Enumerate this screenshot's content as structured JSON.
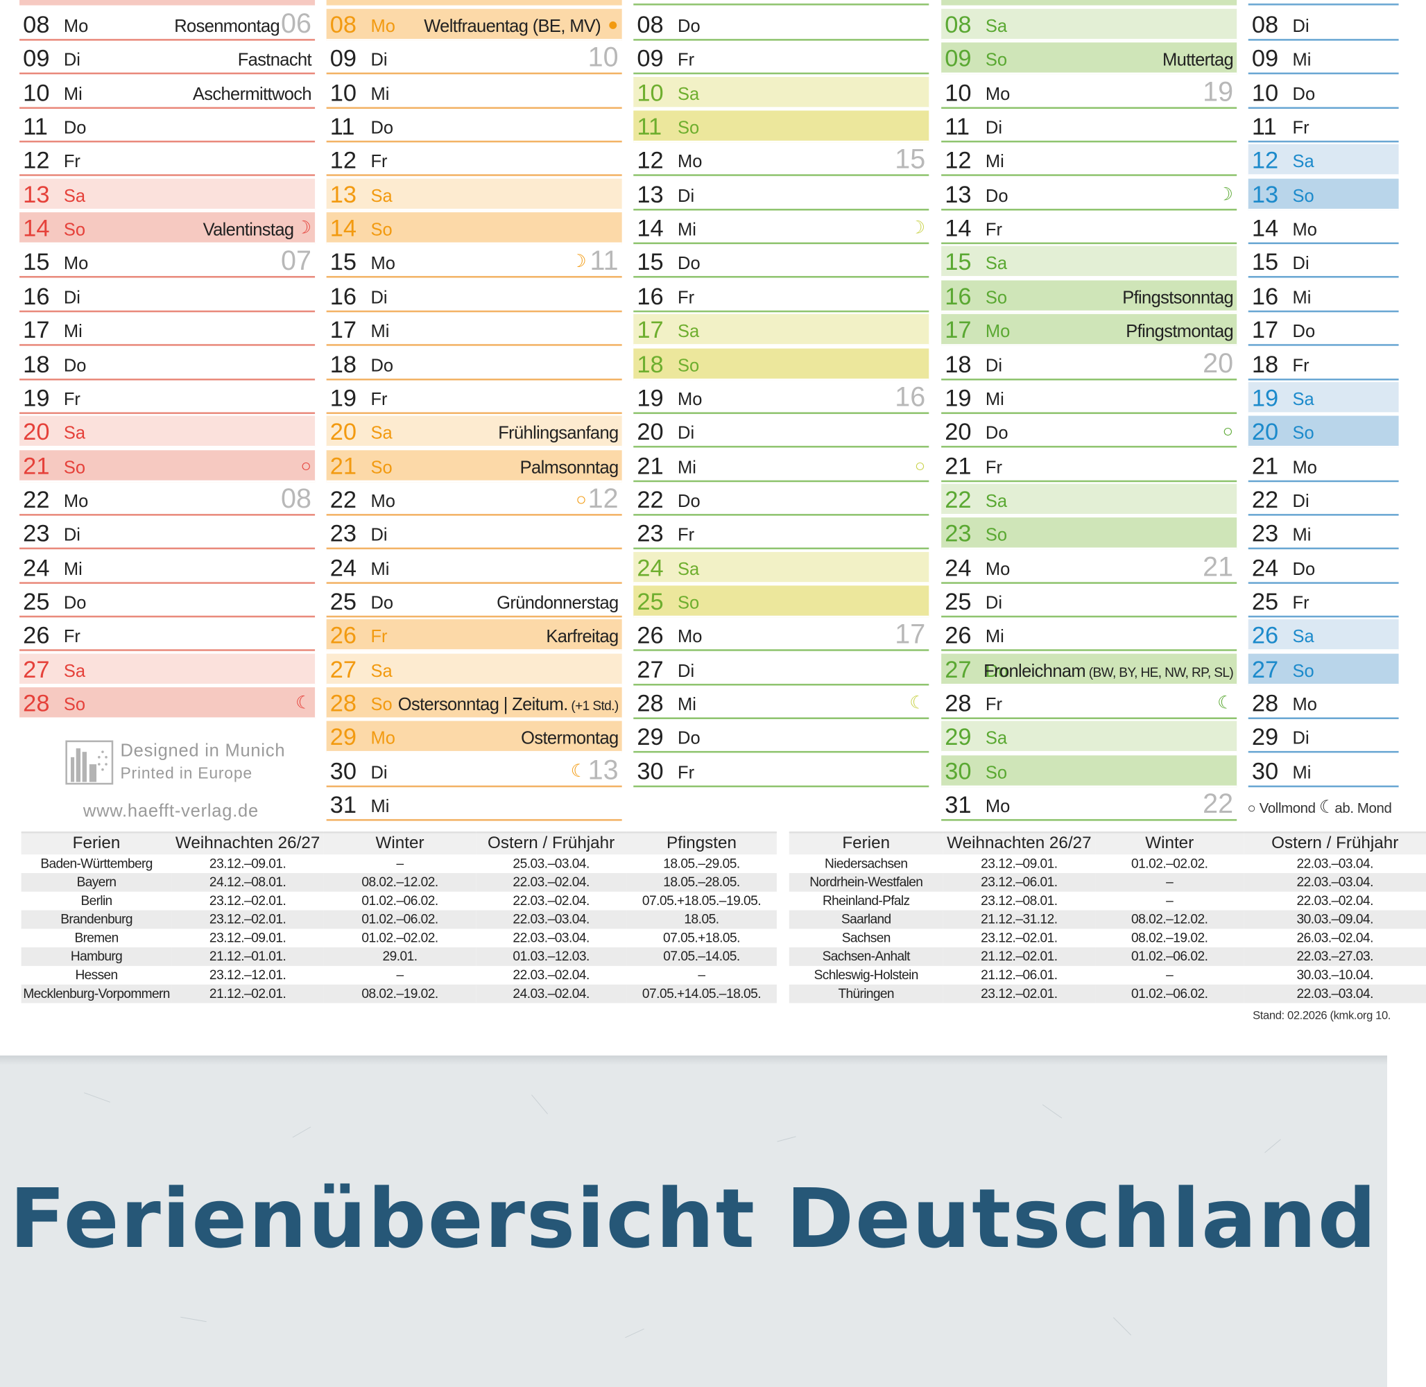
{
  "title": "Ferienübersicht Deutschland",
  "colors": {
    "title": "#265777",
    "felt_background": "#e4e8ea",
    "weeknumber": "#b8b8b8",
    "text": "#222222"
  },
  "credits": {
    "designed": "Designed in Munich",
    "printed": "Printed in Europe",
    "url": "www.haefft-verlag.de"
  },
  "legend": {
    "full_moon": "Vollmond",
    "next": "ab. Mond"
  },
  "months": [
    {
      "key": "feb",
      "theme": {
        "line": "#e98a7c",
        "accent": "#e5413a",
        "sat": "#fbe1dc",
        "sun": "#f6c9c1",
        "hol": "#fbe1dc",
        "moon": "#e5413a"
      },
      "days": [
        {
          "d": "08",
          "w": "Mo",
          "hol": "Rosenmontag",
          "wk": "06"
        },
        {
          "d": "09",
          "w": "Di",
          "hol": "Fastnacht"
        },
        {
          "d": "10",
          "w": "Mi",
          "hol": "Aschermittwoch"
        },
        {
          "d": "11",
          "w": "Do"
        },
        {
          "d": "12",
          "w": "Fr"
        },
        {
          "d": "13",
          "w": "Sa",
          "type": "sat"
        },
        {
          "d": "14",
          "w": "So",
          "type": "sun",
          "hol": "Valentinstag",
          "moon": "☽"
        },
        {
          "d": "15",
          "w": "Mo",
          "wk": "07"
        },
        {
          "d": "16",
          "w": "Di"
        },
        {
          "d": "17",
          "w": "Mi"
        },
        {
          "d": "18",
          "w": "Do"
        },
        {
          "d": "19",
          "w": "Fr"
        },
        {
          "d": "20",
          "w": "Sa",
          "type": "sat"
        },
        {
          "d": "21",
          "w": "So",
          "type": "sun",
          "moon": "○"
        },
        {
          "d": "22",
          "w": "Mo",
          "wk": "08"
        },
        {
          "d": "23",
          "w": "Di"
        },
        {
          "d": "24",
          "w": "Mi"
        },
        {
          "d": "25",
          "w": "Do"
        },
        {
          "d": "26",
          "w": "Fr"
        },
        {
          "d": "27",
          "w": "Sa",
          "type": "sat"
        },
        {
          "d": "28",
          "w": "So",
          "type": "sun",
          "moon": "☾"
        }
      ]
    },
    {
      "key": "mar",
      "theme": {
        "line": "#f3b366",
        "accent": "#f29a10",
        "sat": "#fdebd0",
        "sun": "#fcd9a8",
        "hol": "#fcd9a8",
        "moon": "#f29a10"
      },
      "days": [
        {
          "d": "08",
          "w": "Mo",
          "type": "hol",
          "hol": "Weltfrauentag (BE, MV)",
          "moon": "●"
        },
        {
          "d": "09",
          "w": "Di",
          "wk": "10"
        },
        {
          "d": "10",
          "w": "Mi"
        },
        {
          "d": "11",
          "w": "Do"
        },
        {
          "d": "12",
          "w": "Fr"
        },
        {
          "d": "13",
          "w": "Sa",
          "type": "sat"
        },
        {
          "d": "14",
          "w": "So",
          "type": "sun"
        },
        {
          "d": "15",
          "w": "Mo",
          "moon": "☽",
          "wk": "11"
        },
        {
          "d": "16",
          "w": "Di"
        },
        {
          "d": "17",
          "w": "Mi"
        },
        {
          "d": "18",
          "w": "Do"
        },
        {
          "d": "19",
          "w": "Fr"
        },
        {
          "d": "20",
          "w": "Sa",
          "type": "sat",
          "hol": "Frühlingsanfang"
        },
        {
          "d": "21",
          "w": "So",
          "type": "sun",
          "hol": "Palmsonntag"
        },
        {
          "d": "22",
          "w": "Mo",
          "moon": "○",
          "wk": "12"
        },
        {
          "d": "23",
          "w": "Di"
        },
        {
          "d": "24",
          "w": "Mi"
        },
        {
          "d": "25",
          "w": "Do",
          "hol": "Gründonnerstag"
        },
        {
          "d": "26",
          "w": "Fr",
          "type": "hol",
          "hol": "Karfreitag"
        },
        {
          "d": "27",
          "w": "Sa",
          "type": "sat"
        },
        {
          "d": "28",
          "w": "So",
          "type": "sun",
          "hol": "Ostersonntag | Zeitum.",
          "hol_small": "(+1 Std.)"
        },
        {
          "d": "29",
          "w": "Mo",
          "type": "hol",
          "hol": "Ostermontag"
        },
        {
          "d": "30",
          "w": "Di",
          "moon": "☾",
          "wk": "13"
        },
        {
          "d": "31",
          "w": "Mi"
        }
      ]
    },
    {
      "key": "apr",
      "theme": {
        "line": "#8fc46f",
        "accent": "#6eae2e",
        "sat": "#f2f1c6",
        "sun": "#ece79c",
        "hol": "#ece79c",
        "moon": "#c9d24a"
      },
      "days": [
        {
          "d": "08",
          "w": "Do"
        },
        {
          "d": "09",
          "w": "Fr"
        },
        {
          "d": "10",
          "w": "Sa",
          "type": "sat"
        },
        {
          "d": "11",
          "w": "So",
          "type": "sun"
        },
        {
          "d": "12",
          "w": "Mo",
          "wk": "15"
        },
        {
          "d": "13",
          "w": "Di"
        },
        {
          "d": "14",
          "w": "Mi",
          "moon": "☽"
        },
        {
          "d": "15",
          "w": "Do"
        },
        {
          "d": "16",
          "w": "Fr"
        },
        {
          "d": "17",
          "w": "Sa",
          "type": "sat"
        },
        {
          "d": "18",
          "w": "So",
          "type": "sun"
        },
        {
          "d": "19",
          "w": "Mo",
          "wk": "16"
        },
        {
          "d": "20",
          "w": "Di"
        },
        {
          "d": "21",
          "w": "Mi",
          "moon": "○"
        },
        {
          "d": "22",
          "w": "Do"
        },
        {
          "d": "23",
          "w": "Fr"
        },
        {
          "d": "24",
          "w": "Sa",
          "type": "sat"
        },
        {
          "d": "25",
          "w": "So",
          "type": "sun"
        },
        {
          "d": "26",
          "w": "Mo",
          "wk": "17"
        },
        {
          "d": "27",
          "w": "Di"
        },
        {
          "d": "28",
          "w": "Mi",
          "moon": "☾"
        },
        {
          "d": "29",
          "w": "Do"
        },
        {
          "d": "30",
          "w": "Fr"
        }
      ]
    },
    {
      "key": "may",
      "theme": {
        "line": "#8fc46f",
        "accent": "#5aa832",
        "sat": "#e3efd5",
        "sun": "#cfe5b8",
        "hol": "#cfe5b8",
        "moon": "#5aa832"
      },
      "days": [
        {
          "d": "08",
          "w": "Sa",
          "type": "sat"
        },
        {
          "d": "09",
          "w": "So",
          "type": "sun",
          "hol": "Muttertag"
        },
        {
          "d": "10",
          "w": "Mo",
          "wk": "19"
        },
        {
          "d": "11",
          "w": "Di"
        },
        {
          "d": "12",
          "w": "Mi"
        },
        {
          "d": "13",
          "w": "Do",
          "moon": "☽"
        },
        {
          "d": "14",
          "w": "Fr"
        },
        {
          "d": "15",
          "w": "Sa",
          "type": "sat"
        },
        {
          "d": "16",
          "w": "So",
          "type": "sun",
          "hol": "Pfingstsonntag"
        },
        {
          "d": "17",
          "w": "Mo",
          "type": "hol",
          "hol": "Pfingstmontag"
        },
        {
          "d": "18",
          "w": "Di",
          "wk": "20"
        },
        {
          "d": "19",
          "w": "Mi"
        },
        {
          "d": "20",
          "w": "Do",
          "moon": "○"
        },
        {
          "d": "21",
          "w": "Fr"
        },
        {
          "d": "22",
          "w": "Sa",
          "type": "sat"
        },
        {
          "d": "23",
          "w": "So",
          "type": "sun"
        },
        {
          "d": "24",
          "w": "Mo",
          "wk": "21"
        },
        {
          "d": "25",
          "w": "Di"
        },
        {
          "d": "26",
          "w": "Mi"
        },
        {
          "d": "27",
          "w": "Do",
          "type": "hol",
          "hol": "Fronleichnam",
          "hol_small": "(BW, BY, HE, NW, RP, SL)"
        },
        {
          "d": "28",
          "w": "Fr",
          "moon": "☾"
        },
        {
          "d": "29",
          "w": "Sa",
          "type": "sat"
        },
        {
          "d": "30",
          "w": "So",
          "type": "sun"
        },
        {
          "d": "31",
          "w": "Mo",
          "wk": "22"
        }
      ]
    },
    {
      "key": "jun",
      "theme": {
        "line": "#6aa7d3",
        "accent": "#1c8acb",
        "sat": "#dbe8f3",
        "sun": "#b9d5ea",
        "hol": "#b9d5ea",
        "moon": "#1c8acb"
      },
      "days": [
        {
          "d": "08",
          "w": "Di"
        },
        {
          "d": "09",
          "w": "Mi"
        },
        {
          "d": "10",
          "w": "Do"
        },
        {
          "d": "11",
          "w": "Fr"
        },
        {
          "d": "12",
          "w": "Sa",
          "type": "sat"
        },
        {
          "d": "13",
          "w": "So",
          "type": "sun"
        },
        {
          "d": "14",
          "w": "Mo"
        },
        {
          "d": "15",
          "w": "Di"
        },
        {
          "d": "16",
          "w": "Mi"
        },
        {
          "d": "17",
          "w": "Do"
        },
        {
          "d": "18",
          "w": "Fr"
        },
        {
          "d": "19",
          "w": "Sa",
          "type": "sat"
        },
        {
          "d": "20",
          "w": "So",
          "type": "sun"
        },
        {
          "d": "21",
          "w": "Mo"
        },
        {
          "d": "22",
          "w": "Di"
        },
        {
          "d": "23",
          "w": "Mi"
        },
        {
          "d": "24",
          "w": "Do"
        },
        {
          "d": "25",
          "w": "Fr"
        },
        {
          "d": "26",
          "w": "Sa",
          "type": "sat"
        },
        {
          "d": "27",
          "w": "So",
          "type": "sun"
        },
        {
          "d": "28",
          "w": "Mo"
        },
        {
          "d": "29",
          "w": "Di"
        },
        {
          "d": "30",
          "w": "Mi"
        }
      ]
    }
  ],
  "holiday_table": {
    "left": {
      "headers": [
        "Ferien",
        "Weihnachten 26/27",
        "Winter",
        "Ostern / Frühjahr",
        "Pfingsten"
      ],
      "rows": [
        [
          "Baden-Württemberg",
          "23.12.–09.01.",
          "–",
          "25.03.–03.04.",
          "18.05.–29.05."
        ],
        [
          "Bayern",
          "24.12.–08.01.",
          "08.02.–12.02.",
          "22.03.–02.04.",
          "18.05.–28.05."
        ],
        [
          "Berlin",
          "23.12.–02.01.",
          "01.02.–06.02.",
          "22.03.–02.04.",
          "07.05.+18.05.–19.05."
        ],
        [
          "Brandenburg",
          "23.12.–02.01.",
          "01.02.–06.02.",
          "22.03.–03.04.",
          "18.05."
        ],
        [
          "Bremen",
          "23.12.–09.01.",
          "01.02.–02.02.",
          "22.03.–03.04.",
          "07.05.+18.05."
        ],
        [
          "Hamburg",
          "21.12.–01.01.",
          "29.01.",
          "01.03.–12.03.",
          "07.05.–14.05."
        ],
        [
          "Hessen",
          "23.12.–12.01.",
          "–",
          "22.03.–02.04.",
          "–"
        ],
        [
          "Mecklenburg-Vorpommern",
          "21.12.–02.01.",
          "08.02.–19.02.",
          "24.03.–02.04.",
          "07.05.+14.05.–18.05."
        ]
      ]
    },
    "right": {
      "headers": [
        "Ferien",
        "Weihnachten 26/27",
        "Winter",
        "Ostern / Frühjahr"
      ],
      "rows": [
        [
          "Niedersachsen",
          "23.12.–09.01.",
          "01.02.–02.02.",
          "22.03.–03.04."
        ],
        [
          "Nordrhein-Westfalen",
          "23.12.–06.01.",
          "–",
          "22.03.–03.04."
        ],
        [
          "Rheinland-Pfalz",
          "23.12.–08.01.",
          "–",
          "22.03.–02.04."
        ],
        [
          "Saarland",
          "21.12.–31.12.",
          "08.02.–12.02.",
          "30.03.–09.04."
        ],
        [
          "Sachsen",
          "23.12.–02.01.",
          "08.02.–19.02.",
          "26.03.–02.04."
        ],
        [
          "Sachsen-Anhalt",
          "21.12.–02.01.",
          "01.02.–06.02.",
          "22.03.–27.03."
        ],
        [
          "Schleswig-Holstein",
          "21.12.–06.01.",
          "–",
          "30.03.–10.04."
        ],
        [
          "Thüringen",
          "23.12.–02.01.",
          "01.02.–06.02.",
          "22.03.–03.04."
        ]
      ]
    },
    "stand": "Stand: 02.2026 (kmk.org 10."
  }
}
